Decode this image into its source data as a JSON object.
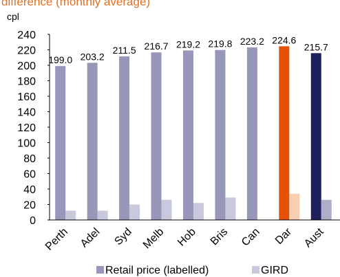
{
  "chart_data": {
    "type": "bar",
    "title": "difference (monthly average)",
    "y_label": "cpl",
    "categories": [
      "Perth",
      "Adel",
      "Syd",
      "Melb",
      "Hob",
      "Bris",
      "Can",
      "Dar",
      "Aust"
    ],
    "series": [
      {
        "name": "Retail price (labelled)",
        "color": "#9797b9",
        "colors": [
          "#9797b9",
          "#9797b9",
          "#9797b9",
          "#9797b9",
          "#9797b9",
          "#9797b9",
          "#9797b9",
          "#e35205",
          "#1f1f5c"
        ],
        "values": [
          199.0,
          203.2,
          211.5,
          216.7,
          219.2,
          219.8,
          223.2,
          224.6,
          215.7
        ],
        "value_labels": [
          "199.0",
          "203.2",
          "211.5",
          "216.7",
          "219.2",
          "219.8",
          "223.2",
          "224.6",
          "215.7"
        ]
      },
      {
        "name": "GIRD",
        "color": "#c9c9dd",
        "colors": [
          "#c9c9dd",
          "#c9c9dd",
          "#c9c9dd",
          "#c9c9dd",
          "#c9c9dd",
          "#c9c9dd",
          "#c9c9dd",
          "#f9cfb4",
          "#aeaec8"
        ],
        "values": [
          12,
          12,
          20,
          26,
          22,
          29,
          null,
          34,
          26
        ]
      }
    ],
    "ylim": [
      0,
      240
    ],
    "yticks": [
      0,
      20,
      40,
      60,
      80,
      100,
      120,
      140,
      160,
      180,
      200,
      220,
      240
    ],
    "grid": false
  }
}
